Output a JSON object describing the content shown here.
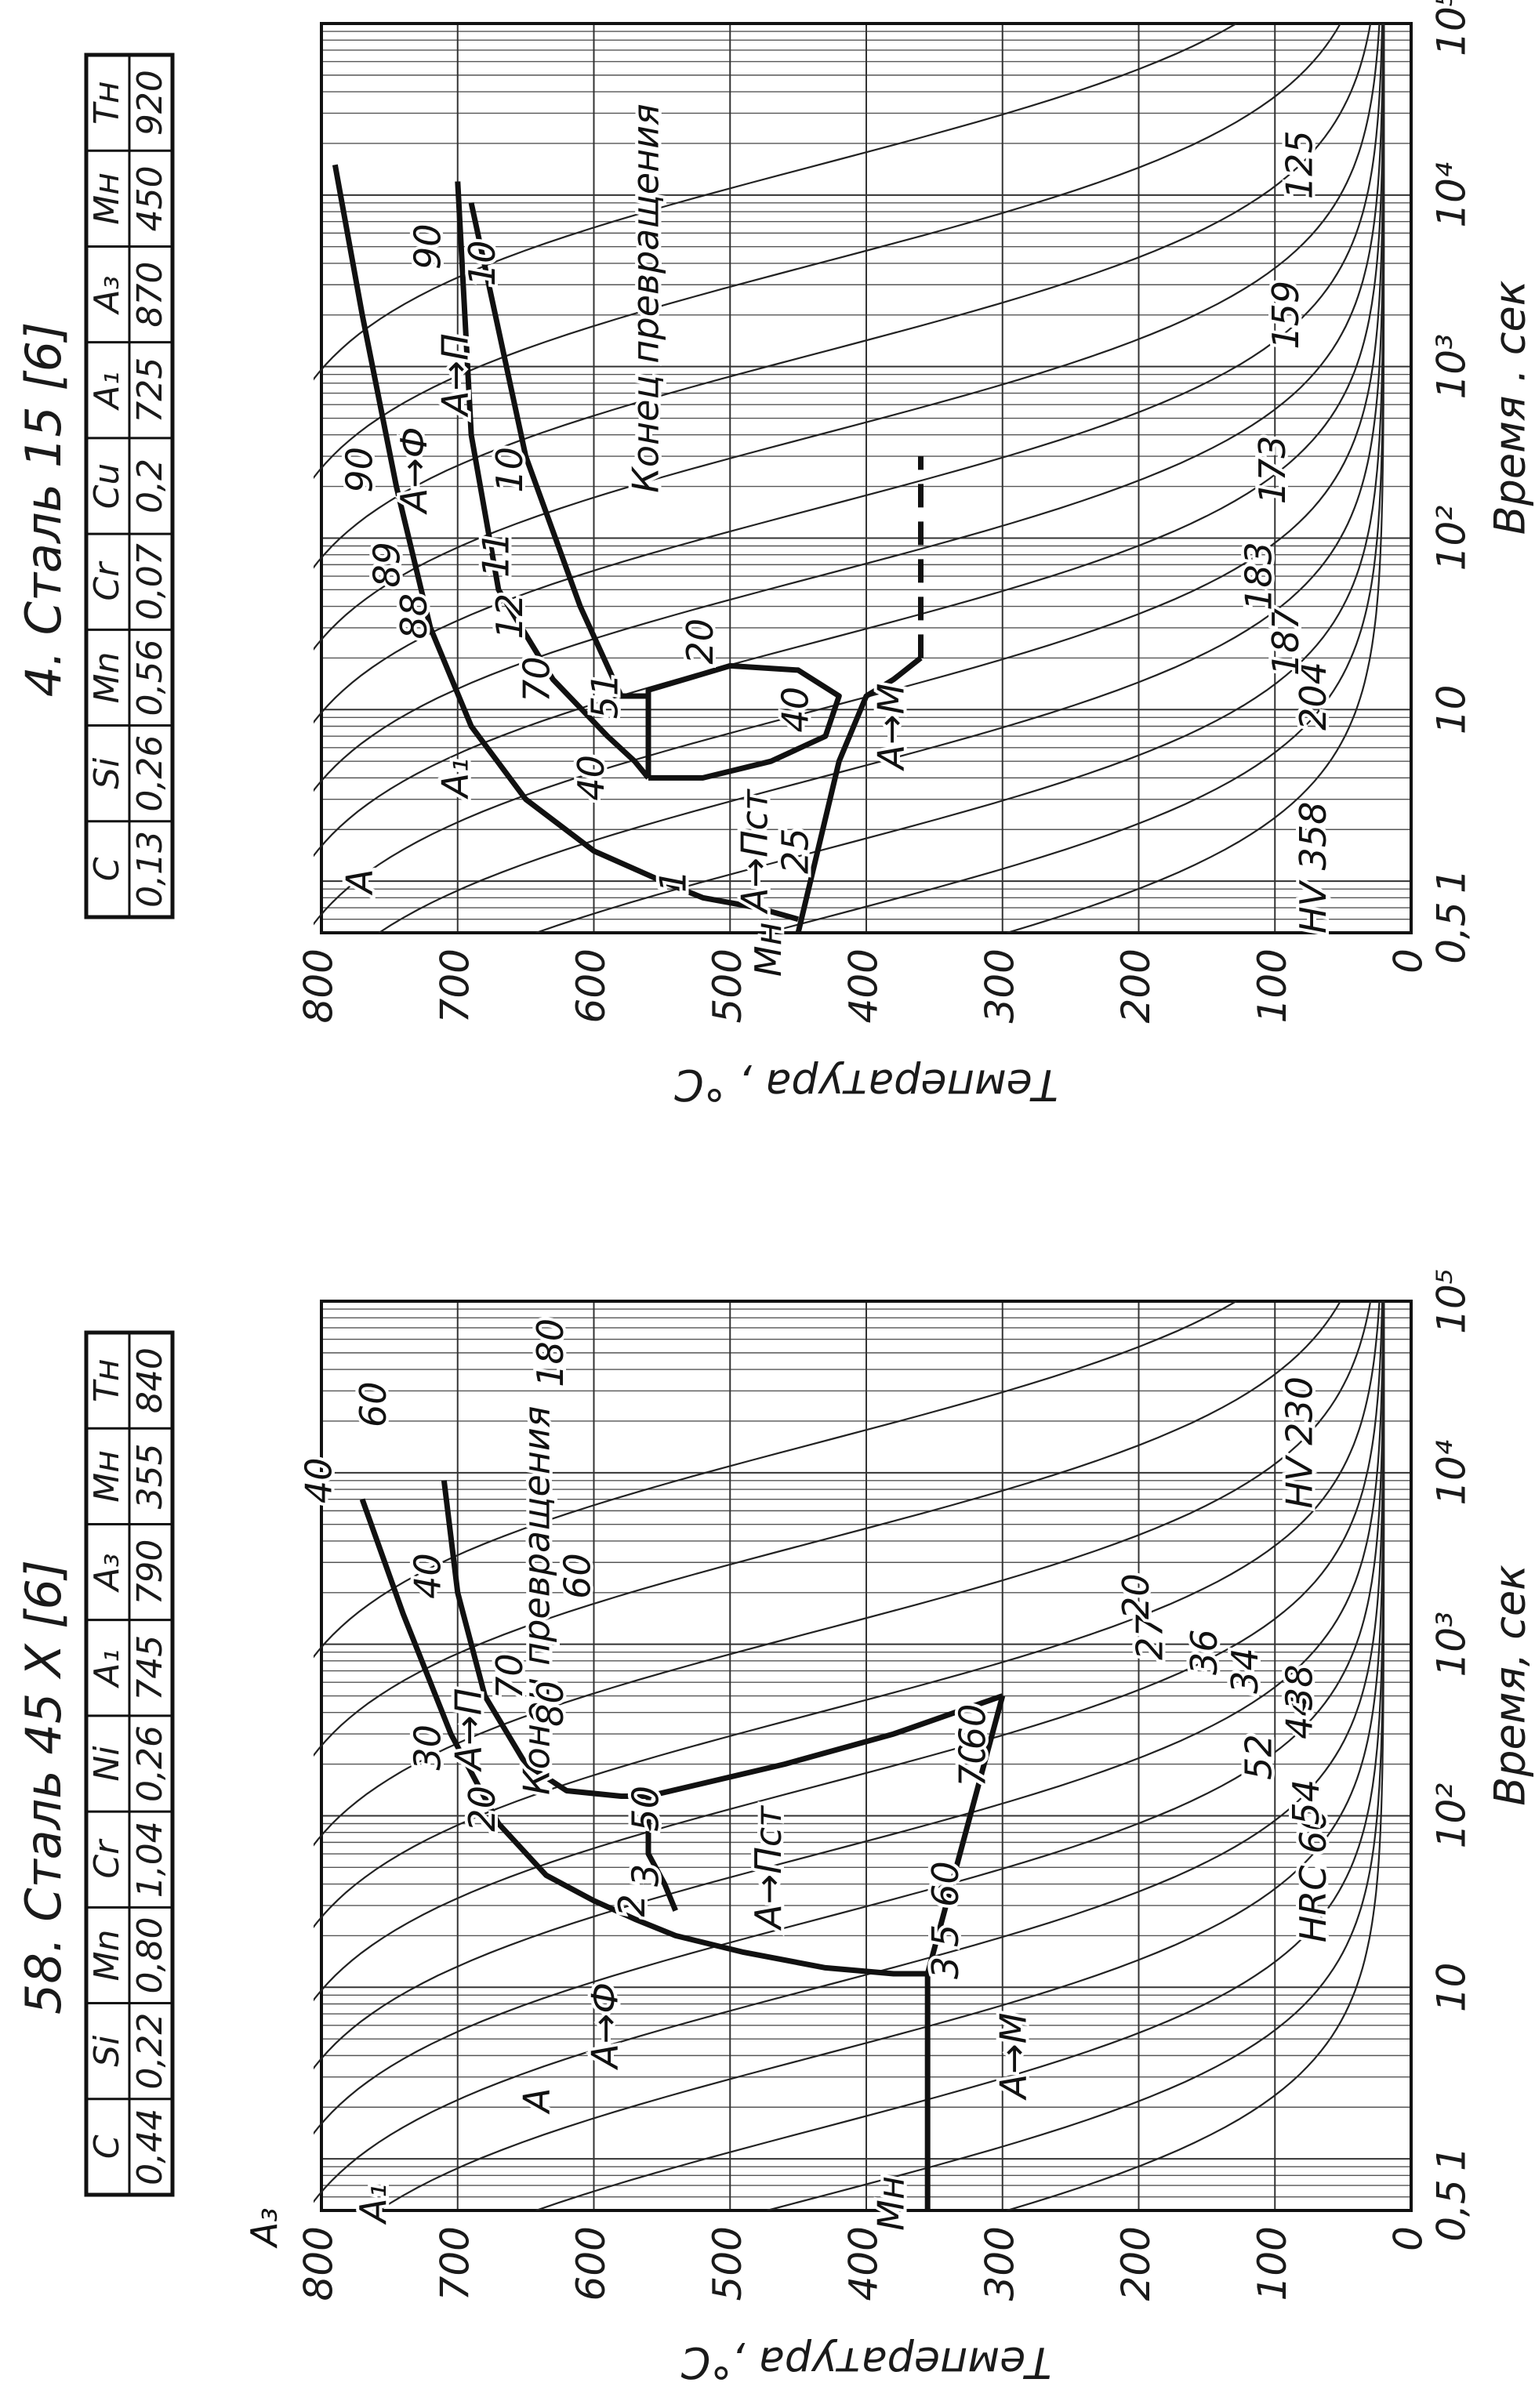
{
  "panels": [
    {
      "title": "58. Сталь 45 X [6]",
      "table": {
        "header": [
          "C",
          "Si",
          "Mn",
          "Cr",
          "Ni",
          "A₁",
          "A₃",
          "Mн",
          "Tн"
        ],
        "values": [
          "0,44",
          "0,22",
          "0,80",
          "1,04",
          "0,26",
          "745",
          "790",
          "355",
          "840"
        ]
      },
      "x_axis": {
        "label": "Время, сек",
        "scale": "log",
        "lim": [
          0.5,
          100000
        ],
        "ticks": [
          {
            "value": 0.5,
            "label": "0,5"
          },
          1,
          10,
          {
            "value": 100,
            "label": "10²"
          },
          {
            "value": 1000,
            "label": "10³"
          },
          {
            "value": 10000,
            "label": "10⁴"
          },
          {
            "value": 100000,
            "label": "10⁵"
          }
        ]
      },
      "y_axis": {
        "label": "Температура ,°С",
        "lim": [
          0,
          800
        ],
        "ticks": [
          0,
          100,
          200,
          300,
          400,
          500,
          600,
          700,
          800
        ]
      },
      "annotations": [
        "A₃",
        "A₁",
        "A",
        "A→Ф",
        "A→П",
        "A→Пст",
        "A→M",
        "Mн",
        "Конец превращения",
        "HRC 60",
        "54",
        "52",
        "44",
        "38",
        "34",
        "36",
        "27",
        "20",
        "HV 230",
        "180",
        "40",
        "60",
        "40",
        "60",
        "70",
        "80",
        "30",
        "20",
        "2",
        "3",
        "50",
        "3",
        "5",
        "60",
        "70",
        "60"
      ]
    },
    {
      "title": "4. Сталь 15 [6]",
      "table": {
        "header": [
          "C",
          "Si",
          "Mn",
          "Cr",
          "Cu",
          "A₁",
          "A₃",
          "Mн",
          "Tн"
        ],
        "values": [
          "0,13",
          "0,26",
          "0,56",
          "0,07",
          "0,2",
          "725",
          "870",
          "450",
          "920"
        ]
      },
      "x_axis": {
        "label": "Время . сек",
        "scale": "log",
        "lim": [
          0.5,
          100000
        ],
        "ticks": [
          {
            "value": 0.5,
            "label": "0,5"
          },
          1,
          10,
          {
            "value": 100,
            "label": "10²"
          },
          {
            "value": 1000,
            "label": "10³"
          },
          {
            "value": 10000,
            "label": "10⁴"
          },
          {
            "value": 100000,
            "label": "10⁵"
          }
        ]
      },
      "y_axis": {
        "label": "Температура , °С",
        "lim": [
          0,
          800
        ],
        "ticks": [
          0,
          100,
          200,
          300,
          400,
          500,
          600,
          700,
          800
        ]
      },
      "annotations": [
        "A",
        "A₁",
        "A→Ф",
        "A→П",
        "A→Пст",
        "A→M",
        "Mн",
        "Конец превращения",
        "HV 358",
        "204",
        "187",
        "183",
        "173",
        "159",
        "125",
        "90",
        "90",
        "89",
        "88",
        "70",
        "40",
        "1",
        "25",
        "51",
        "12",
        "11",
        "10",
        "10",
        "20",
        "40"
      ]
    }
  ]
}
